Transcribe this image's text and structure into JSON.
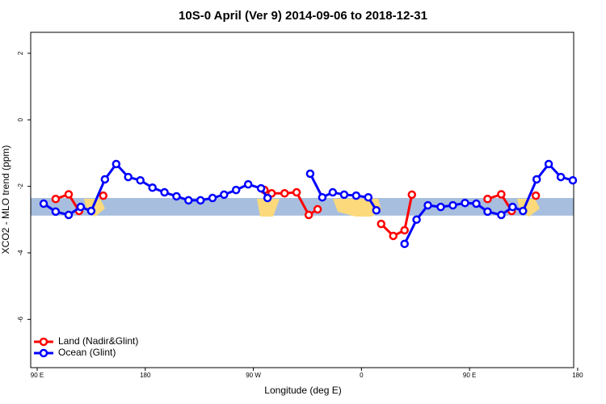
{
  "chart_data": {
    "type": "line",
    "title": "10S-0 April (Ver 9)   2014-09-06 to 2018-12-31",
    "x_label": "Longitude (deg E)",
    "y_label": "XCO2 - MLO trend (ppm)",
    "xlim": [
      84.6,
      536.7
    ],
    "ylim": [
      -7.45,
      2.63
    ],
    "xticks": [
      {
        "value": 90,
        "label": "90 E"
      },
      180,
      {
        "value": 270,
        "label": "90 W"
      },
      {
        "value": 360,
        "label": "0"
      },
      {
        "value": 450,
        "label": "90 E"
      },
      {
        "value": 540,
        "label": "180"
      }
    ],
    "yticks": [
      2,
      0,
      -2,
      -4,
      -6
    ],
    "band": [
      -2.35,
      -2.88
    ],
    "band_color": "#a7bede",
    "legend": "bottomleft",
    "series": [
      {
        "name": "Land (Nadir&Glint)",
        "color": "#ff0000",
        "x": [
          105.4,
          116.2,
          124.9,
          null,
          145,
          null,
          279.2,
          285.2,
          296,
          306,
          316.1,
          323.5,
          null,
          376.4,
          386.5,
          395.9,
          402,
          null,
          465,
          476.4,
          485.1,
          null,
          505.2
        ],
        "values": [
          -2.38,
          -2.24,
          -2.74,
          null,
          -2.28,
          null,
          -2.11,
          -2.21,
          -2.21,
          -2.18,
          -2.86,
          -2.69,
          null,
          -3.13,
          -3.49,
          -3.32,
          -2.25,
          null,
          -2.38,
          -2.24,
          -2.74,
          null,
          -2.28
        ]
      },
      {
        "name": "Ocean (Glint)",
        "color": "#0000ff",
        "x": [
          95.4,
          105.4,
          116.2,
          126.2,
          135,
          146.4,
          155.8,
          165.8,
          175.9,
          186,
          196,
          206,
          216,
          226,
          236,
          245.6,
          255.6,
          265.7,
          276.4,
          281.8,
          null,
          317.3,
          327.4,
          336.1,
          345.6,
          355.6,
          365.7,
          372.4,
          null,
          395.9,
          405.9,
          415.3,
          426,
          436.1,
          446.2,
          455.6,
          465,
          476.4,
          485.8,
          494.5,
          505.9,
          515.9,
          526,
          536
        ],
        "values": [
          -2.52,
          -2.76,
          -2.86,
          -2.62,
          -2.74,
          -1.79,
          -1.33,
          -1.72,
          -1.82,
          -2.04,
          -2.18,
          -2.3,
          -2.42,
          -2.42,
          -2.35,
          -2.25,
          -2.11,
          -1.94,
          -2.06,
          -2.35,
          null,
          -1.62,
          -2.33,
          -2.18,
          -2.25,
          -2.28,
          -2.33,
          -2.72,
          null,
          -3.73,
          -3.0,
          -2.57,
          -2.62,
          -2.57,
          -2.5,
          -2.52,
          -2.76,
          -2.86,
          -2.62,
          -2.74,
          -1.79,
          -1.33,
          -1.72,
          -1.82
        ]
      }
    ]
  }
}
